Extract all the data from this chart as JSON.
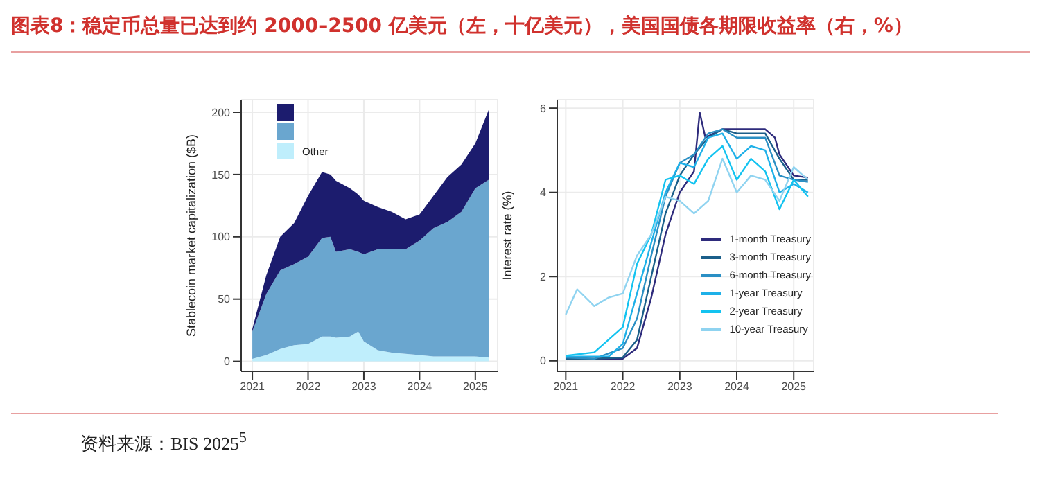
{
  "chart_data": [
    {
      "type": "area",
      "stacked": true,
      "title": "图表8：稳定币总量已达到约 2000–2500 亿美元（左，十亿美元），美国国债各期限收益率（右，%）",
      "ylabel": "Stablecoin market capitalization ($B)",
      "annotations": [
        "资料来源：BIS 2025$^{5}$"
      ],
      "x": [
        2021,
        2021.25,
        2021.5,
        2021.75,
        2022,
        2022.25,
        2022.4,
        2022.5,
        2022.75,
        2022.9,
        2023,
        2023.25,
        2023.5,
        2023.75,
        2024,
        2024.25,
        2024.5,
        2024.75,
        2025,
        2025.25
      ],
      "series": [
        {
          "name": "Other",
          "color": "#bfeefc",
          "values": [
            2,
            5,
            10,
            13,
            14,
            20,
            20,
            19,
            20,
            24,
            16,
            9,
            7,
            6,
            5,
            4,
            4,
            4,
            4,
            3
          ]
        },
        {
          "color": "#6aa6cf",
          "values": [
            22,
            49,
            63,
            65,
            70,
            79,
            80,
            69,
            70,
            64,
            70,
            81,
            83,
            84,
            92,
            103,
            108,
            116,
            135,
            143
          ]
        },
        {
          "color": "#1c1c6e",
          "values": [
            2,
            15,
            27,
            33,
            49,
            53,
            50,
            57,
            49,
            46,
            43,
            34,
            30,
            24,
            21,
            26,
            36,
            38,
            36,
            57
          ]
        }
      ],
      "xlim": [
        2020.8,
        2025.4
      ],
      "xticks": [
        2021,
        2022,
        2023,
        2024,
        2025
      ],
      "ylim": [
        -8,
        210
      ],
      "yticks": [
        0,
        50,
        100,
        150,
        200
      ],
      "grid": true,
      "legend": "top left"
    },
    {
      "type": "line",
      "ylabel": "Interest rate (%)",
      "xlim": [
        2020.85,
        2025.35
      ],
      "xticks": [
        2021,
        2022,
        2023,
        2024,
        2025
      ],
      "ylim": [
        -0.25,
        6.2
      ],
      "yticks": [
        0,
        2,
        4,
        6
      ],
      "grid": true,
      "legend": "bottom right",
      "line_style": "solid",
      "marker": "none",
      "series": [
        {
          "name": "1-month Treasury",
          "color": "#2e2b7c",
          "x": [
            2021,
            2021.5,
            2022,
            2022.25,
            2022.5,
            2022.75,
            2023,
            2023.25,
            2023.35,
            2023.45,
            2023.75,
            2024,
            2024.5,
            2024.67,
            2024.75,
            2025,
            2025.25
          ],
          "values": [
            0.05,
            0.04,
            0.05,
            0.3,
            1.5,
            3.0,
            4.0,
            4.5,
            5.9,
            5.3,
            5.5,
            5.5,
            5.5,
            5.3,
            4.9,
            4.4,
            4.35
          ]
        },
        {
          "name": "3-month Treasury",
          "color": "#1b5f8a",
          "x": [
            2021,
            2021.5,
            2022,
            2022.25,
            2022.5,
            2022.75,
            2023,
            2023.25,
            2023.5,
            2023.75,
            2024,
            2024.5,
            2024.75,
            2025,
            2025.25
          ],
          "values": [
            0.05,
            0.05,
            0.08,
            0.5,
            2.0,
            3.5,
            4.4,
            4.9,
            5.3,
            5.5,
            5.4,
            5.4,
            4.8,
            4.3,
            4.3
          ]
        },
        {
          "name": "6-month Treasury",
          "color": "#2a8fc4",
          "x": [
            2021,
            2021.5,
            2022,
            2022.25,
            2022.5,
            2022.75,
            2023,
            2023.25,
            2023.5,
            2023.75,
            2024,
            2024.5,
            2024.75,
            2025,
            2025.25
          ],
          "values": [
            0.08,
            0.05,
            0.3,
            1.0,
            2.5,
            3.9,
            4.7,
            4.9,
            5.4,
            5.5,
            5.3,
            5.3,
            4.4,
            4.3,
            4.25
          ]
        },
        {
          "name": "1-year Treasury",
          "color": "#1eb0e8",
          "x": [
            2021,
            2021.75,
            2022,
            2022.25,
            2022.5,
            2022.75,
            2023,
            2023.25,
            2023.5,
            2023.75,
            2024,
            2024.25,
            2024.5,
            2024.75,
            2025,
            2025.25
          ],
          "values": [
            0.1,
            0.1,
            0.4,
            1.6,
            2.8,
            4.0,
            4.7,
            4.6,
            5.3,
            5.4,
            4.8,
            5.1,
            5.0,
            4.0,
            4.2,
            4.0
          ]
        },
        {
          "name": "2-year Treasury",
          "color": "#13c3f0",
          "x": [
            2021,
            2021.5,
            2022,
            2022.25,
            2022.5,
            2022.75,
            2023,
            2023.25,
            2023.5,
            2023.75,
            2024,
            2024.25,
            2024.5,
            2024.75,
            2025,
            2025.25
          ],
          "values": [
            0.12,
            0.2,
            0.8,
            2.3,
            3.0,
            4.3,
            4.4,
            4.2,
            4.8,
            5.1,
            4.3,
            4.8,
            4.5,
            3.6,
            4.3,
            3.9
          ]
        },
        {
          "name": "10-year Treasury",
          "color": "#8fd3f0",
          "x": [
            2021,
            2021.2,
            2021.5,
            2021.75,
            2022,
            2022.25,
            2022.5,
            2022.75,
            2023,
            2023.25,
            2023.5,
            2023.75,
            2024,
            2024.25,
            2024.5,
            2024.75,
            2025,
            2025.25
          ],
          "values": [
            1.1,
            1.7,
            1.3,
            1.5,
            1.6,
            2.5,
            3.0,
            3.9,
            3.8,
            3.5,
            3.8,
            4.8,
            4.0,
            4.4,
            4.3,
            3.8,
            4.6,
            4.3
          ]
        }
      ]
    }
  ]
}
